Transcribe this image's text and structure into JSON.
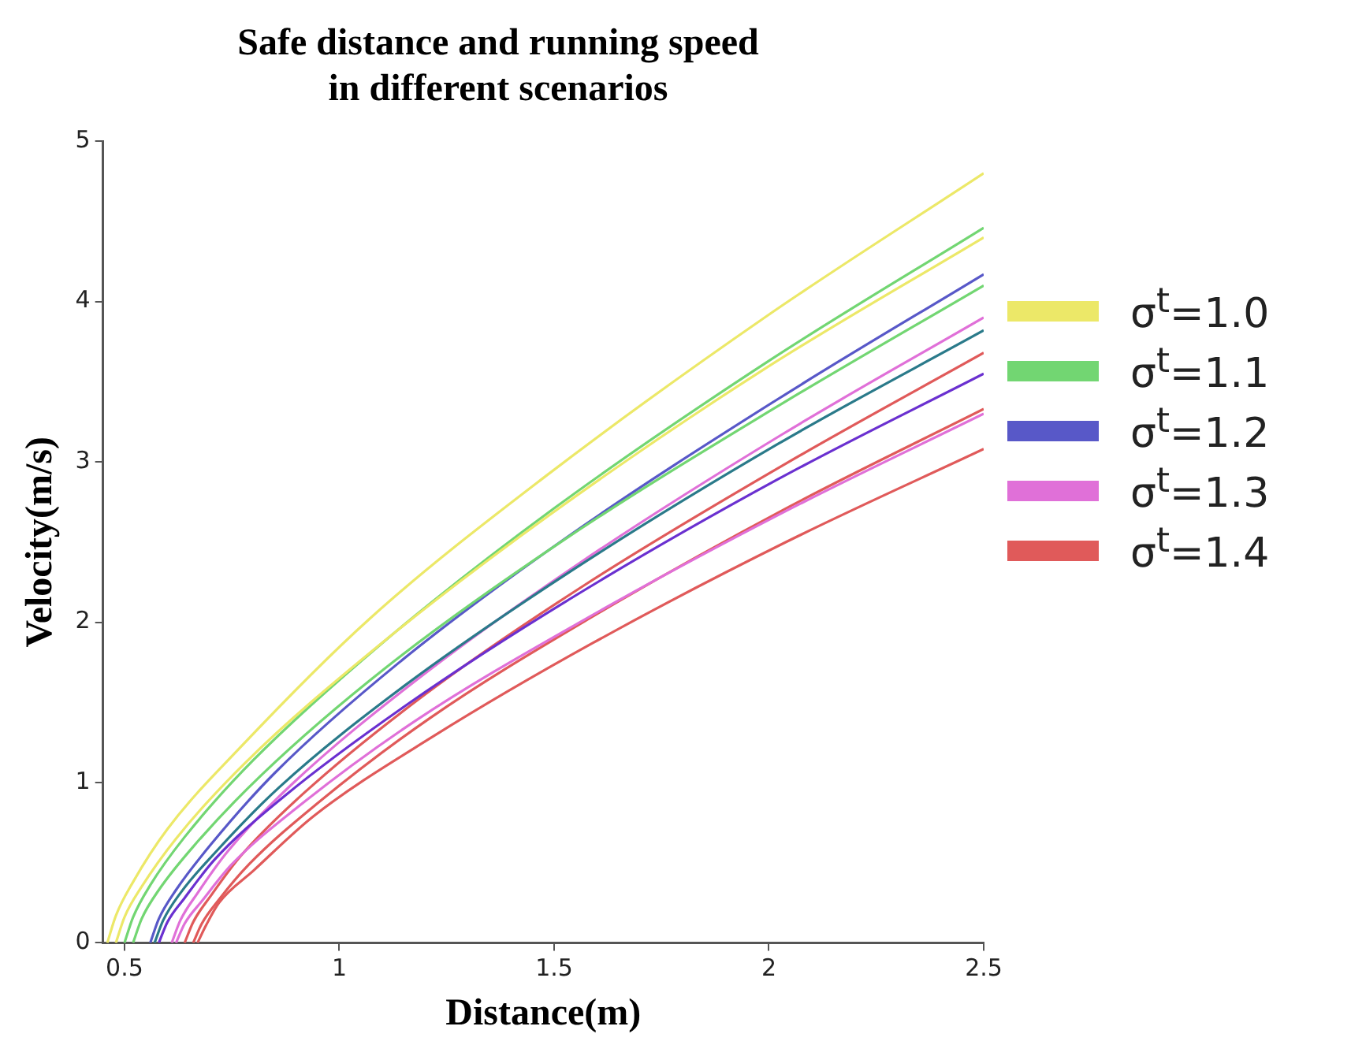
{
  "chart_data": {
    "type": "line",
    "title": "Safe distance and running speed\nin different scenarios",
    "xlabel": "Distance(m)",
    "ylabel": "Velocity(m/s)",
    "xlim": [
      0.45,
      2.5
    ],
    "xticks": [
      0.5,
      1,
      1.5,
      2,
      2.5
    ],
    "ylim": [
      0,
      5
    ],
    "yticks": [
      0,
      1,
      2,
      3,
      4,
      5
    ],
    "grid": false,
    "legend": "right",
    "marker": "none",
    "line_style": "solid",
    "series": [
      {
        "name": "σ$^{t}$=1.0",
        "color": "#ece868",
        "x": [
          0.46,
          0.48,
          0.52,
          0.6,
          0.77,
          1.07,
          1.48,
          1.99,
          2.5
        ],
        "values": [
          0,
          0.17,
          0.38,
          0.71,
          1.22,
          2.02,
          2.91,
          3.9,
          4.8
        ]
      },
      {
        "color": "#ece868",
        "x": [
          0.48,
          0.5,
          0.54,
          0.62,
          0.78,
          1.09,
          1.49,
          1.99,
          2.5
        ],
        "values": [
          0,
          0.16,
          0.35,
          0.65,
          1.12,
          1.85,
          2.67,
          3.58,
          4.4
        ]
      },
      {
        "name": "σ$^{t}$=1.1",
        "color": "#72d672",
        "x": [
          0.5,
          0.52,
          0.56,
          0.64,
          0.8,
          1.1,
          1.5,
          2.0,
          2.5
        ],
        "values": [
          0,
          0.16,
          0.36,
          0.66,
          1.14,
          1.87,
          2.71,
          3.63,
          4.46
        ]
      },
      {
        "color": "#72d672",
        "x": [
          0.52,
          0.54,
          0.58,
          0.66,
          0.82,
          1.11,
          1.51,
          2.01,
          2.5
        ],
        "values": [
          0,
          0.15,
          0.33,
          0.6,
          1.05,
          1.72,
          2.49,
          3.33,
          4.1
        ]
      },
      {
        "name": "σ$^{t}$=1.2",
        "color": "#5858c8",
        "x": [
          0.56,
          0.58,
          0.62,
          0.7,
          0.85,
          1.14,
          1.53,
          2.02,
          2.5
        ],
        "values": [
          0,
          0.15,
          0.33,
          0.61,
          1.06,
          1.75,
          2.53,
          3.39,
          4.17
        ]
      },
      {
        "color": "#2a7a8a",
        "x": [
          0.57,
          0.59,
          0.63,
          0.71,
          0.86,
          1.15,
          1.54,
          2.02,
          2.5
        ],
        "values": [
          0,
          0.14,
          0.31,
          0.56,
          0.97,
          1.6,
          2.32,
          3.11,
          3.82
        ]
      },
      {
        "color": "#6a30d0",
        "x": [
          0.58,
          0.6,
          0.64,
          0.71,
          0.87,
          1.16,
          1.54,
          2.02,
          2.5
        ],
        "values": [
          0,
          0.13,
          0.28,
          0.52,
          0.91,
          1.49,
          2.15,
          2.89,
          3.55
        ]
      },
      {
        "name": "σ$^{t}$=1.3",
        "color": "#e070d8",
        "x": [
          0.61,
          0.63,
          0.67,
          0.74,
          0.89,
          1.18,
          1.56,
          2.03,
          2.5
        ],
        "values": [
          0,
          0.14,
          0.31,
          0.57,
          0.99,
          1.64,
          2.37,
          3.17,
          3.9
        ]
      },
      {
        "color": "#e070d8",
        "x": [
          0.62,
          0.64,
          0.68,
          0.75,
          0.9,
          1.18,
          1.56,
          2.03,
          2.5
        ],
        "values": [
          0,
          0.12,
          0.26,
          0.49,
          0.84,
          1.39,
          2.0,
          2.68,
          3.3
        ]
      },
      {
        "name": "σ$^{t}$=1.4",
        "color": "#e05a5a",
        "x": [
          0.64,
          0.66,
          0.7,
          0.77,
          0.92,
          1.2,
          1.57,
          2.04,
          2.5
        ],
        "values": [
          0,
          0.13,
          0.29,
          0.54,
          0.94,
          1.55,
          2.23,
          2.99,
          3.68
        ]
      },
      {
        "color": "#e05a5a",
        "x": [
          0.66,
          0.68,
          0.72,
          0.79,
          0.94,
          1.21,
          1.58,
          2.04,
          2.5
        ],
        "values": [
          0,
          0.12,
          0.27,
          0.49,
          0.85,
          1.4,
          2.02,
          2.71,
          3.33
        ]
      },
      {
        "color": "#e05a5a",
        "x": [
          0.67,
          0.69,
          0.72,
          0.8,
          0.94,
          1.22,
          1.59,
          2.04,
          2.5
        ],
        "values": [
          0,
          0.11,
          0.25,
          0.45,
          0.79,
          1.29,
          1.87,
          2.5,
          3.08
        ]
      }
    ]
  }
}
